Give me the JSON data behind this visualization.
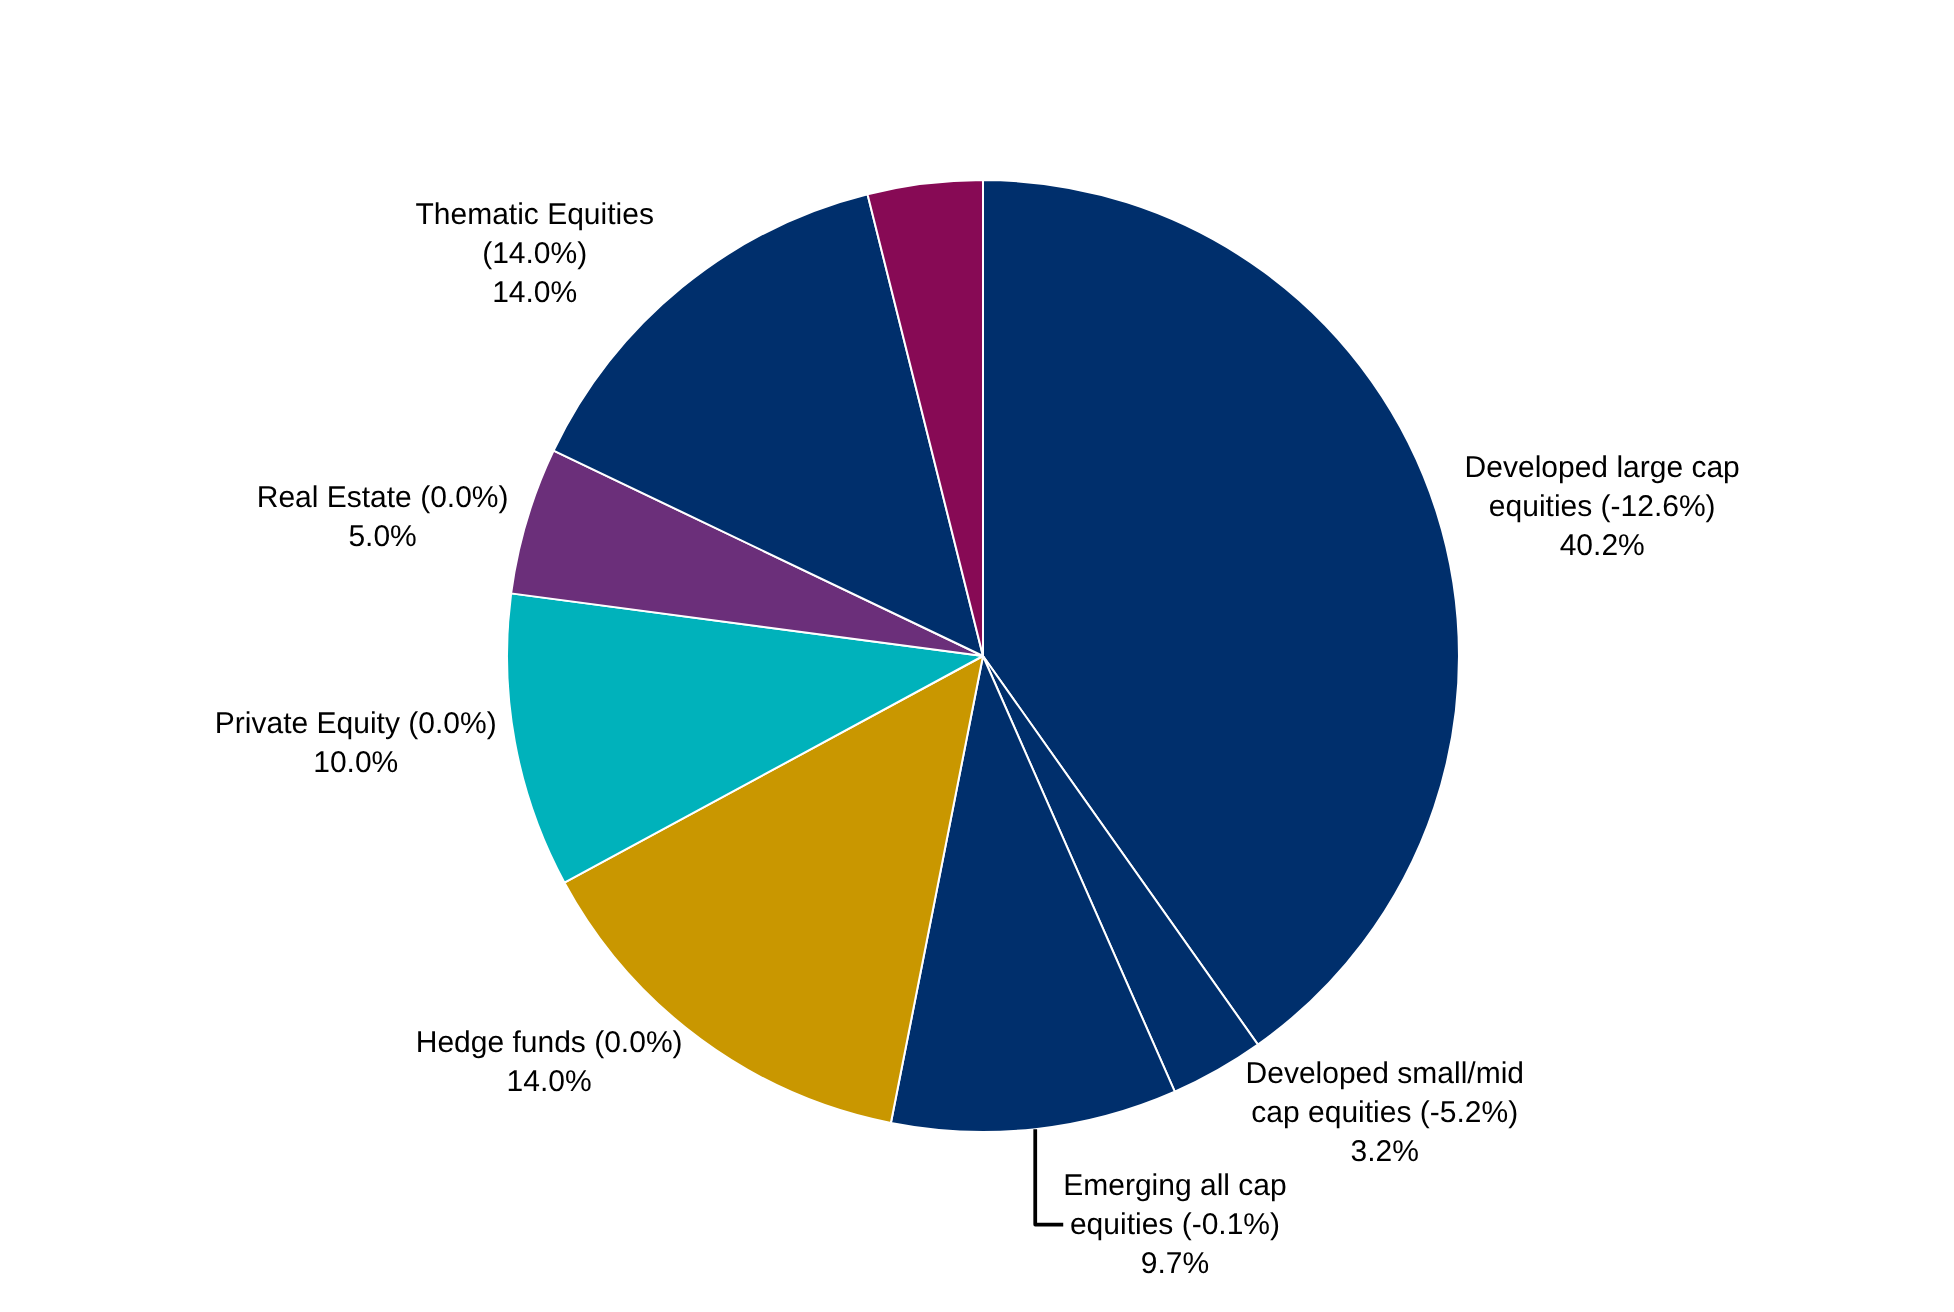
{
  "chart_data": {
    "type": "pie",
    "categories": [
      "Developed large cap equities (-12.6%)",
      "Developed small/mid cap equities (-5.2%)",
      "Emerging all cap equities (-0.1%)",
      "Hedge funds (0.0%)",
      "Private Equity (0.0%)",
      "Real Estate (0.0%)",
      "Thematic Equities (14.0%)",
      null
    ],
    "values": [
      40.2,
      3.2,
      9.7,
      14.0,
      10.0,
      5.0,
      14.0,
      3.9
    ],
    "value_labels": [
      "40.2%",
      "3.2%",
      "9.7%",
      "14.0%",
      "10.0%",
      "5.0%",
      "14.0%",
      null
    ],
    "colors": [
      "#002f6c",
      "#002f6c",
      "#002f6c",
      "#c99700",
      "#00b2bb",
      "#6b2f7a",
      "#002f6c",
      "#870a55"
    ],
    "legend": false
  }
}
